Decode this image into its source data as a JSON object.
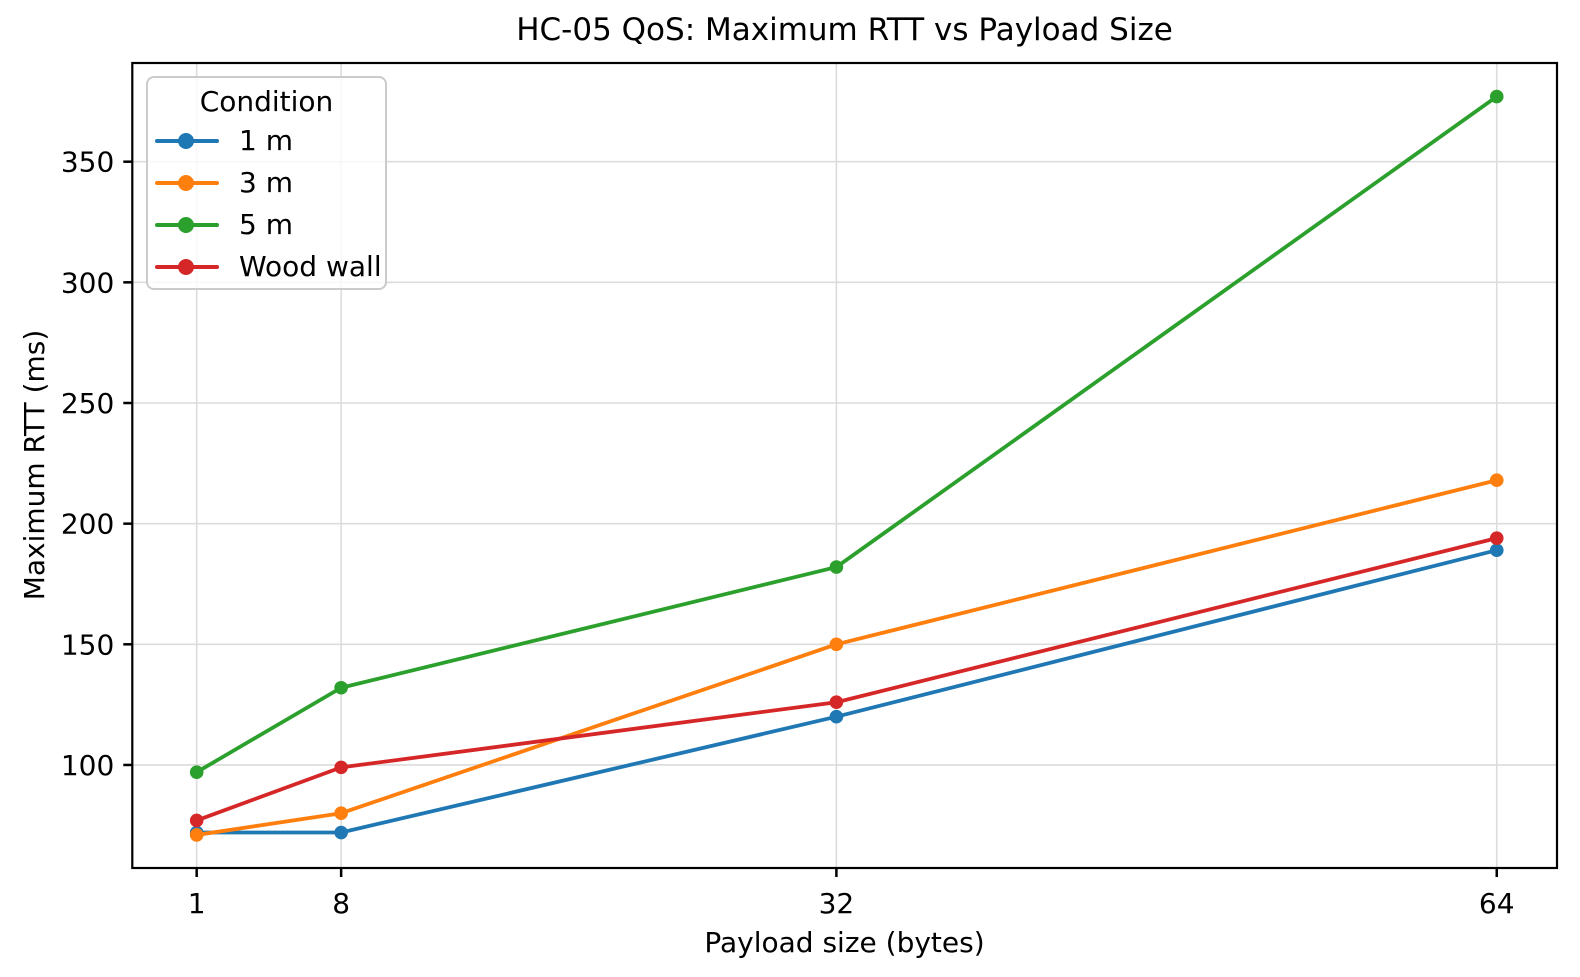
{
  "chart_data": {
    "type": "line",
    "title": "HC-05 QoS: Maximum RTT vs Payload Size",
    "xlabel": "Payload size (bytes)",
    "ylabel": "Maximum RTT (ms)",
    "x": [
      1,
      8,
      32,
      64
    ],
    "xtick_labels": [
      "1",
      "8",
      "32",
      "64"
    ],
    "ytick_values": [
      100,
      150,
      200,
      250,
      300,
      350
    ],
    "ytick_labels": [
      "100",
      "150",
      "200",
      "250",
      "300",
      "350"
    ],
    "xlim": [
      -2.12,
      66.92
    ],
    "ylim": [
      57.3,
      390.9
    ],
    "grid": true,
    "legend_title": "Condition",
    "legend_position": "upper left",
    "series": [
      {
        "name": "1 m",
        "color": "#1f77b4",
        "values": [
          72,
          72,
          120,
          189
        ]
      },
      {
        "name": "3 m",
        "color": "#ff7f0e",
        "values": [
          71,
          80,
          150,
          218
        ]
      },
      {
        "name": "5 m",
        "color": "#2ca02c",
        "values": [
          97,
          132,
          182,
          377
        ]
      },
      {
        "name": "Wood wall",
        "color": "#d62728",
        "values": [
          77,
          99,
          126,
          194
        ]
      }
    ],
    "colors": {
      "grid": "#dcdcdc",
      "spine": "#000000",
      "background": "#ffffff",
      "legend_border": "#cbcbcb"
    }
  }
}
